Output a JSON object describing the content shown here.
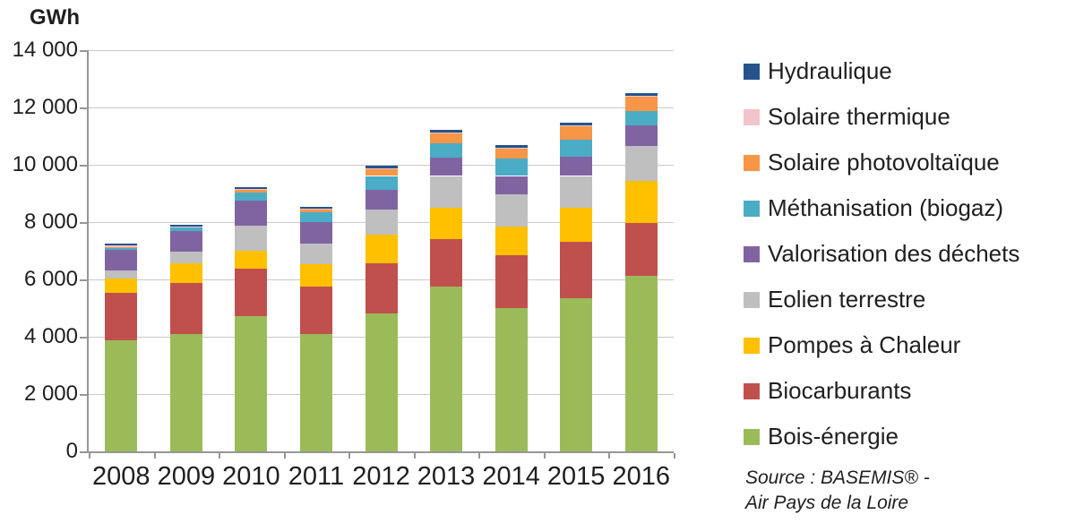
{
  "title": "GWh",
  "source": {
    "line1": "Source : BASEMIS® -",
    "line2": "Air Pays de la Loire"
  },
  "chart_data": {
    "type": "bar",
    "stacked": true,
    "title": "GWh",
    "xlabel": "",
    "ylabel": "GWh",
    "ylim": [
      0,
      14000
    ],
    "ytick_step": 2000,
    "ytick_labels": [
      "0",
      "2 000",
      "4 000",
      "6 000",
      "8 000",
      "10 000",
      "12 000",
      "14 000"
    ],
    "grid": true,
    "legend_position": "right",
    "categories": [
      "2008",
      "2009",
      "2010",
      "2011",
      "2012",
      "2013",
      "2014",
      "2015",
      "2016"
    ],
    "series": [
      {
        "name": "Bois-énergie",
        "color": "#9BBB59",
        "values": [
          3890,
          4100,
          4730,
          4080,
          4810,
          5750,
          5000,
          5350,
          6110
        ]
      },
      {
        "name": "Biocarburants",
        "color": "#C0504D",
        "values": [
          1650,
          1765,
          1635,
          1670,
          1740,
          1670,
          1845,
          1965,
          1850
        ]
      },
      {
        "name": "Pompes à Chaleur",
        "color": "#FFC000",
        "values": [
          490,
          705,
          625,
          780,
          1000,
          1095,
          990,
          1200,
          1480
        ]
      },
      {
        "name": "Eolien terrestre",
        "color": "#BFBFBF",
        "values": [
          290,
          400,
          895,
          730,
          900,
          1095,
          1130,
          1095,
          1215
        ]
      },
      {
        "name": "Valorisation des déchets",
        "color": "#8064A2",
        "values": [
          710,
          710,
          860,
          735,
          670,
          625,
          645,
          680,
          730
        ]
      },
      {
        "name": "Méthanisation (biogaz)",
        "color": "#4BACC6",
        "values": [
          95,
          145,
          290,
          350,
          490,
          525,
          605,
          595,
          500
        ]
      },
      {
        "name": "Solaire photovoltaïque",
        "color": "#F79646",
        "values": [
          10,
          15,
          105,
          105,
          265,
          365,
          375,
          455,
          500
        ]
      },
      {
        "name": "Solaire thermique",
        "color": "#F2C4CB",
        "values": [
          60,
          10,
          10,
          10,
          10,
          10,
          10,
          45,
          15
        ]
      },
      {
        "name": "Hydraulique",
        "color": "#26538C",
        "values": [
          65,
          55,
          75,
          75,
          70,
          95,
          80,
          95,
          90
        ]
      }
    ],
    "totals": [
      7260,
      7905,
      9225,
      8535,
      9955,
      11230,
      10680,
      11480,
      12490
    ],
    "legend_top_to_bottom": [
      "Hydraulique",
      "Solaire thermique",
      "Solaire photovoltaïque",
      "Méthanisation (biogaz)",
      "Valorisation des déchets",
      "Eolien terrestre",
      "Pompes à Chaleur",
      "Biocarburants",
      "Bois-énergie"
    ]
  }
}
